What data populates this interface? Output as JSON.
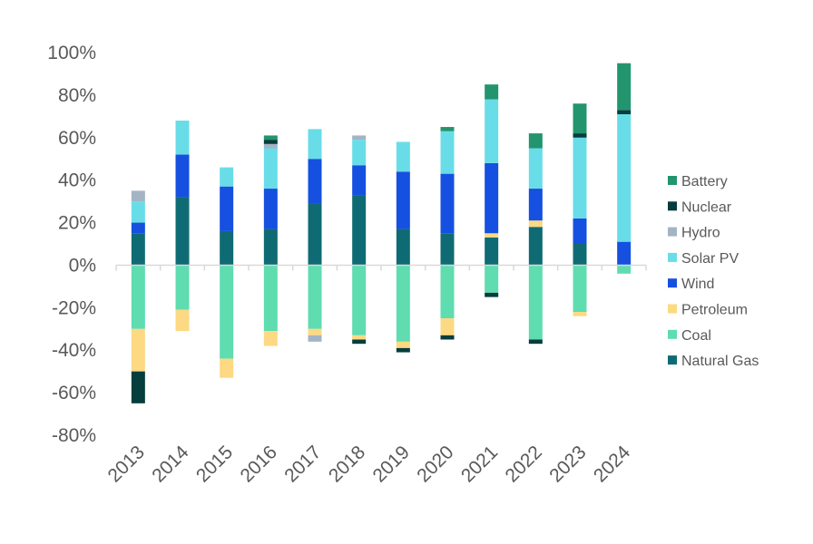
{
  "chart_data": {
    "type": "bar",
    "stacked": true,
    "categories": [
      "2013",
      "2014",
      "2015",
      "2016",
      "2017",
      "2018",
      "2019",
      "2020",
      "2021",
      "2022",
      "2023",
      "2024"
    ],
    "ylim": [
      -80,
      100
    ],
    "yticks": [
      -80,
      -60,
      -40,
      -20,
      0,
      20,
      40,
      60,
      80,
      100
    ],
    "ytick_labels": [
      "-80%",
      "-60%",
      "-40%",
      "-20%",
      "0%",
      "20%",
      "40%",
      "60%",
      "80%",
      "100%"
    ],
    "title": "",
    "xlabel": "",
    "ylabel": "",
    "legend_position": "right",
    "grid": false,
    "series": [
      {
        "name": "Natural Gas",
        "color": "#0f6b73",
        "values": [
          15,
          32,
          16,
          17,
          29,
          33,
          17,
          15,
          13,
          18,
          10,
          0
        ]
      },
      {
        "name": "Coal",
        "color": "#5fdcb0",
        "values": [
          -30,
          -21,
          -44,
          -31,
          -30,
          -33,
          -36,
          -25,
          -13,
          -35,
          -22,
          -4
        ]
      },
      {
        "name": "Petroleum",
        "color": "#fcd982",
        "values": [
          -20,
          -10,
          -9,
          -7,
          -3,
          -2,
          -3,
          -8,
          2,
          3,
          -2,
          0
        ]
      },
      {
        "name": "Wind",
        "color": "#1650e0",
        "values": [
          5,
          20,
          21,
          19,
          21,
          14,
          27,
          28,
          33,
          15,
          12,
          11
        ]
      },
      {
        "name": "Solar PV",
        "color": "#68dde8",
        "values": [
          10,
          16,
          9,
          19,
          14,
          12,
          14,
          20,
          30,
          19,
          38,
          60
        ]
      },
      {
        "name": "Hydro",
        "color": "#a3b4c4",
        "values": [
          5,
          0,
          0,
          2,
          -3,
          2,
          0,
          0,
          0,
          0,
          0,
          0
        ]
      },
      {
        "name": "Nuclear",
        "color": "#063d3d",
        "values": [
          -15,
          0,
          0,
          2,
          0,
          -2,
          -2,
          -2,
          -2,
          -2,
          2,
          2
        ]
      },
      {
        "name": "Battery",
        "color": "#22956e",
        "values": [
          0,
          0,
          0,
          2,
          0,
          0,
          0,
          2,
          7,
          7,
          14,
          22
        ]
      }
    ]
  }
}
